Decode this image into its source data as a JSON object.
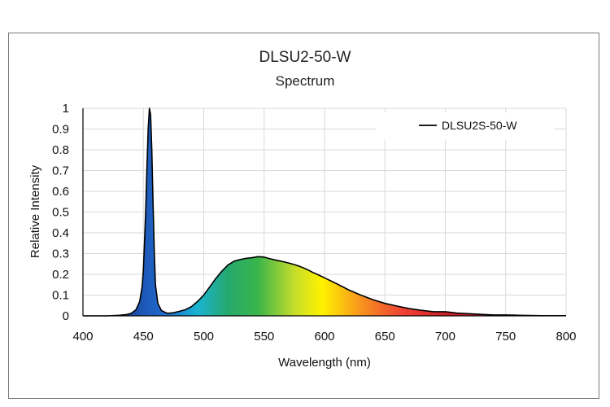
{
  "chart_data": {
    "type": "area",
    "title": "DLSU2-50-W",
    "subtitle": "Spectrum",
    "xlabel": "Wavelength (nm)",
    "ylabel": "Relative Intensity",
    "xlim": [
      400,
      800
    ],
    "ylim": [
      0,
      1
    ],
    "xticks": [
      "400",
      "450",
      "500",
      "550",
      "600",
      "650",
      "700",
      "750",
      "800"
    ],
    "yticks": [
      "0",
      "0.1",
      "0.2",
      "0.3",
      "0.4",
      "0.5",
      "0.6",
      "0.7",
      "0.8",
      "0.9",
      "1"
    ],
    "grid": true,
    "legend_position": "top-right",
    "series": [
      {
        "name": "DLSU2S-50-W",
        "line_color": "#000000",
        "x": [
          400,
          420,
          430,
          436,
          440,
          444,
          447,
          449,
          450,
          451,
          452,
          453,
          454,
          455,
          456,
          457,
          458,
          459,
          460,
          462,
          465,
          470,
          475,
          480,
          485,
          490,
          495,
          500,
          505,
          510,
          515,
          520,
          525,
          530,
          535,
          540,
          545,
          550,
          555,
          560,
          565,
          570,
          575,
          580,
          585,
          590,
          595,
          600,
          610,
          620,
          630,
          640,
          650,
          660,
          670,
          680,
          690,
          700,
          710,
          720,
          730,
          740,
          750,
          760,
          770,
          780,
          790,
          800
        ],
        "y": [
          0.0,
          0.0,
          0.003,
          0.006,
          0.012,
          0.03,
          0.07,
          0.14,
          0.22,
          0.36,
          0.52,
          0.72,
          0.9,
          1.0,
          0.97,
          0.8,
          0.55,
          0.32,
          0.15,
          0.06,
          0.025,
          0.012,
          0.015,
          0.022,
          0.03,
          0.045,
          0.07,
          0.1,
          0.14,
          0.18,
          0.215,
          0.245,
          0.263,
          0.271,
          0.277,
          0.28,
          0.285,
          0.283,
          0.275,
          0.268,
          0.262,
          0.255,
          0.247,
          0.237,
          0.225,
          0.21,
          0.197,
          0.183,
          0.155,
          0.125,
          0.1,
          0.078,
          0.06,
          0.047,
          0.035,
          0.027,
          0.02,
          0.02,
          0.013,
          0.01,
          0.007,
          0.004,
          0.004,
          0.003,
          0.002,
          0.001,
          0.001,
          0.001
        ]
      }
    ],
    "fill_gradient": [
      {
        "wavelength": 430,
        "color": "#1d3f9c"
      },
      {
        "wavelength": 470,
        "color": "#1f6fd0"
      },
      {
        "wavelength": 495,
        "color": "#1cb3d1"
      },
      {
        "wavelength": 520,
        "color": "#25a86e"
      },
      {
        "wavelength": 545,
        "color": "#3ab54a"
      },
      {
        "wavelength": 575,
        "color": "#c5dd2b"
      },
      {
        "wavelength": 598,
        "color": "#fff200"
      },
      {
        "wavelength": 630,
        "color": "#f7941d"
      },
      {
        "wavelength": 665,
        "color": "#ef4136"
      },
      {
        "wavelength": 700,
        "color": "#d11f26"
      },
      {
        "wavelength": 800,
        "color": "#b01a21"
      }
    ]
  }
}
